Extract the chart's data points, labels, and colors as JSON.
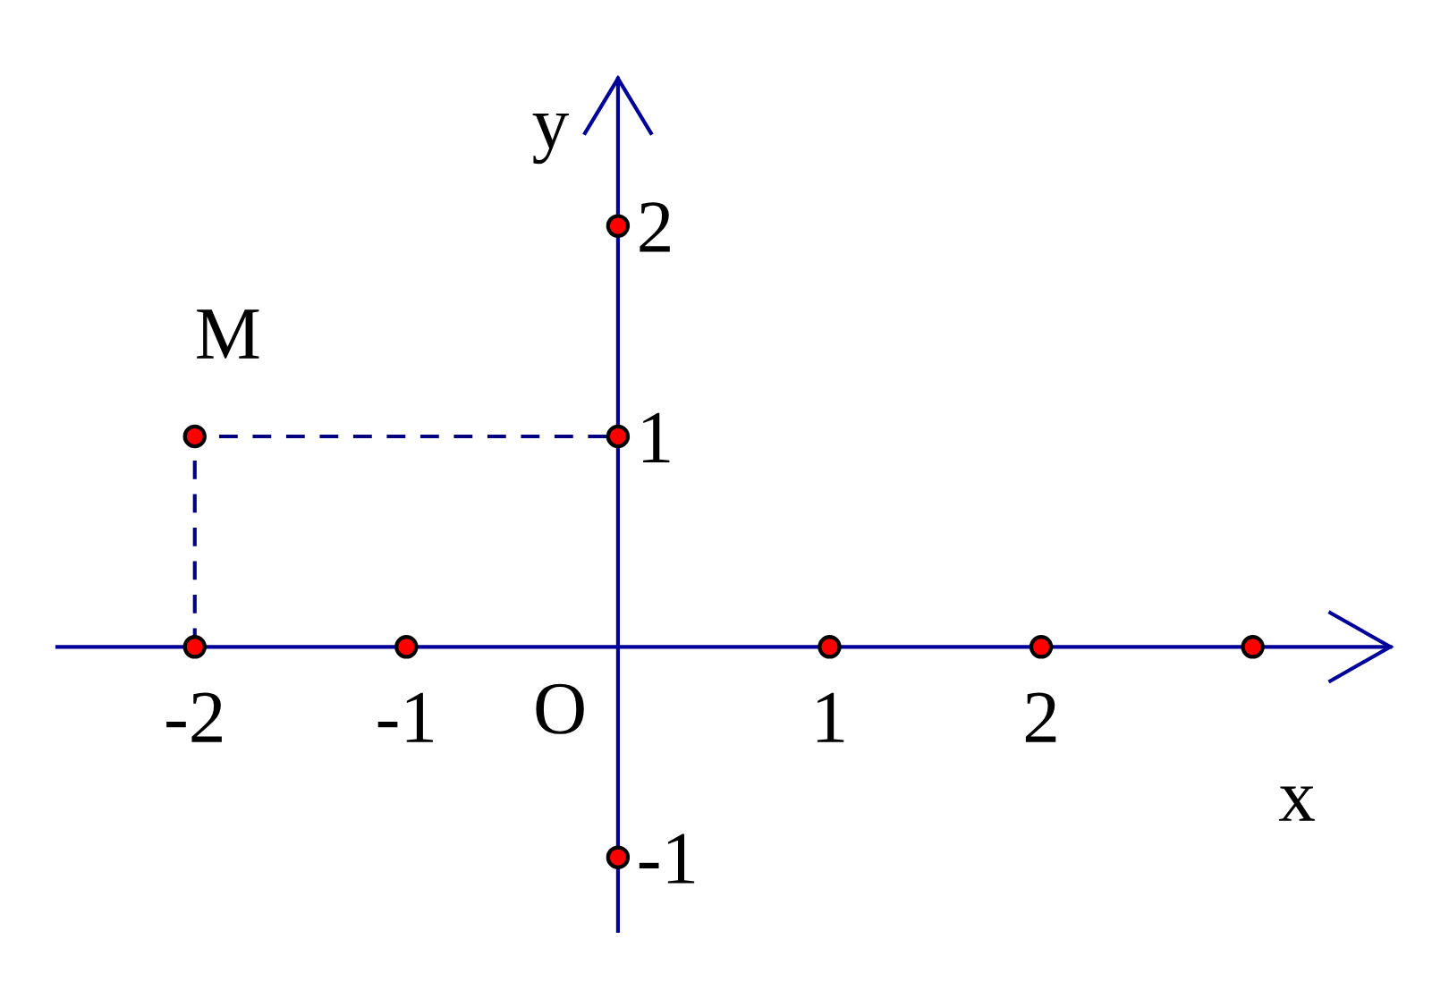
{
  "chart_data": {
    "type": "scatter",
    "xlabel": "x",
    "ylabel": "y",
    "xlim": [
      -2.65,
      3.65
    ],
    "ylim": [
      -1.35,
      2.7
    ],
    "xticks": [
      -2,
      -1,
      1,
      2
    ],
    "yticks": [
      -1,
      1,
      2
    ],
    "annotations": [
      "O"
    ],
    "series": [
      {
        "type": "line",
        "x": [
          -2,
          -2,
          0
        ],
        "values": [
          0,
          1,
          1
        ],
        "color": "#000080",
        "line_style": "dashed"
      },
      {
        "x": [
          -2,
          -1,
          1,
          2,
          3,
          0,
          0,
          0
        ],
        "values": [
          0,
          0,
          0,
          0,
          0,
          -1,
          1,
          2
        ],
        "color": "#ff0000",
        "marker": "circle"
      },
      {
        "name": "M",
        "x": [
          -2
        ],
        "values": [
          1
        ],
        "color": "#ff0000",
        "marker": "circle"
      }
    ]
  }
}
